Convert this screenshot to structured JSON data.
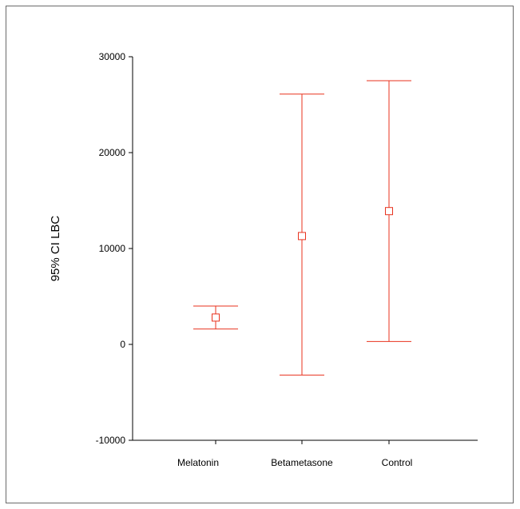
{
  "chart_data": {
    "type": "error-bar",
    "ylabel": "95% CI LBC",
    "xlabel": "",
    "ylim": [
      -10000,
      30000
    ],
    "yticks": [
      {
        "value": -10000,
        "label": "-10000"
      },
      {
        "value": 0,
        "label": "0"
      },
      {
        "value": 10000,
        "label": "10000"
      },
      {
        "value": 20000,
        "label": "20000"
      },
      {
        "value": 30000,
        "label": "30000"
      }
    ],
    "categories": [
      "Melatonin",
      "Betametasone",
      "Control"
    ],
    "points": [
      {
        "category": "Melatonin",
        "mean": 2800,
        "lower": 1600,
        "upper": 4000
      },
      {
        "category": "Betametasone",
        "mean": 11300,
        "lower": -3200,
        "upper": 26100
      },
      {
        "category": "Control",
        "mean": 13900,
        "lower": 300,
        "upper": 27500
      }
    ],
    "grid": false,
    "legend": "none",
    "colors": {
      "series": "#e8321e",
      "axis": "#000000",
      "frame": "#6a6a6a"
    }
  }
}
